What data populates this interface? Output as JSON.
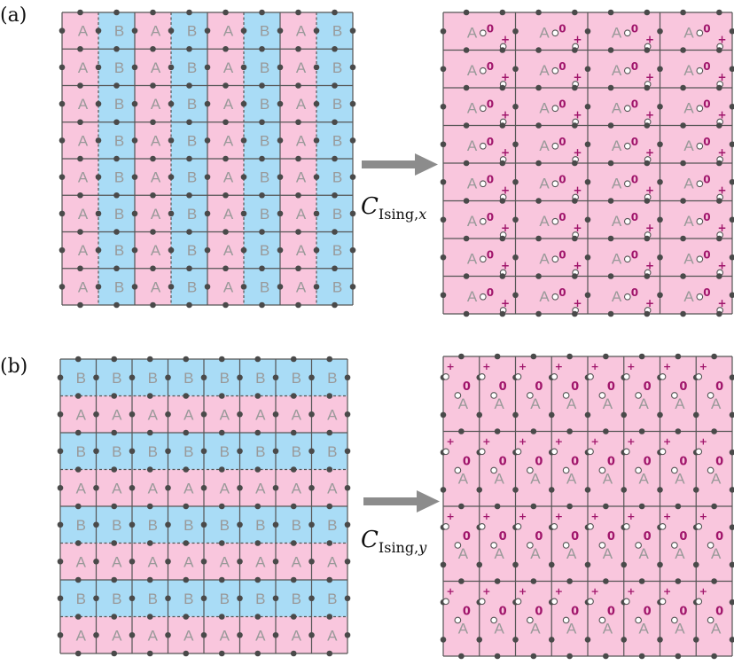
{
  "panels": [
    {
      "label": "(a)",
      "operator": {
        "main": "C",
        "subscript": "Ising,",
        "var": "x"
      }
    },
    {
      "label": "(b)",
      "operator": {
        "main": "C",
        "subscript": "Ising,",
        "var": "y"
      }
    }
  ],
  "letters": {
    "a": "A",
    "b": "B"
  },
  "marks": {
    "plus": "+",
    "zero": "0"
  },
  "colors": {
    "pink": "#f9c6dd",
    "blue": "#a9dcf6",
    "edge": "#555555",
    "dot": "#4a4a4a",
    "open_dot_fill": "#ffffff",
    "mark": "#a0156b",
    "letter": "#999999",
    "arrow": "#8c8c8c"
  }
}
